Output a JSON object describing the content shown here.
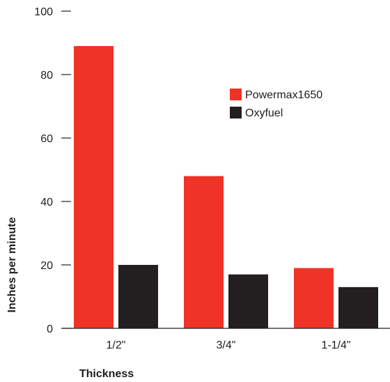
{
  "chart_data": {
    "type": "bar",
    "categories": [
      "1/2\"",
      "3/4\"",
      "1-1/4\""
    ],
    "series": [
      {
        "name": "Powermax1650",
        "values": [
          89,
          48,
          19
        ],
        "color": "#ef3327"
      },
      {
        "name": "Oxyfuel",
        "values": [
          20,
          17,
          13
        ],
        "color": "#231f20"
      }
    ],
    "xlabel": "Thickness",
    "ylabel": "Inches per minute",
    "ylim": [
      0,
      100
    ],
    "yticks": [
      0,
      20,
      40,
      60,
      80,
      100
    ],
    "grid": false,
    "legend_position": "upper-right"
  }
}
